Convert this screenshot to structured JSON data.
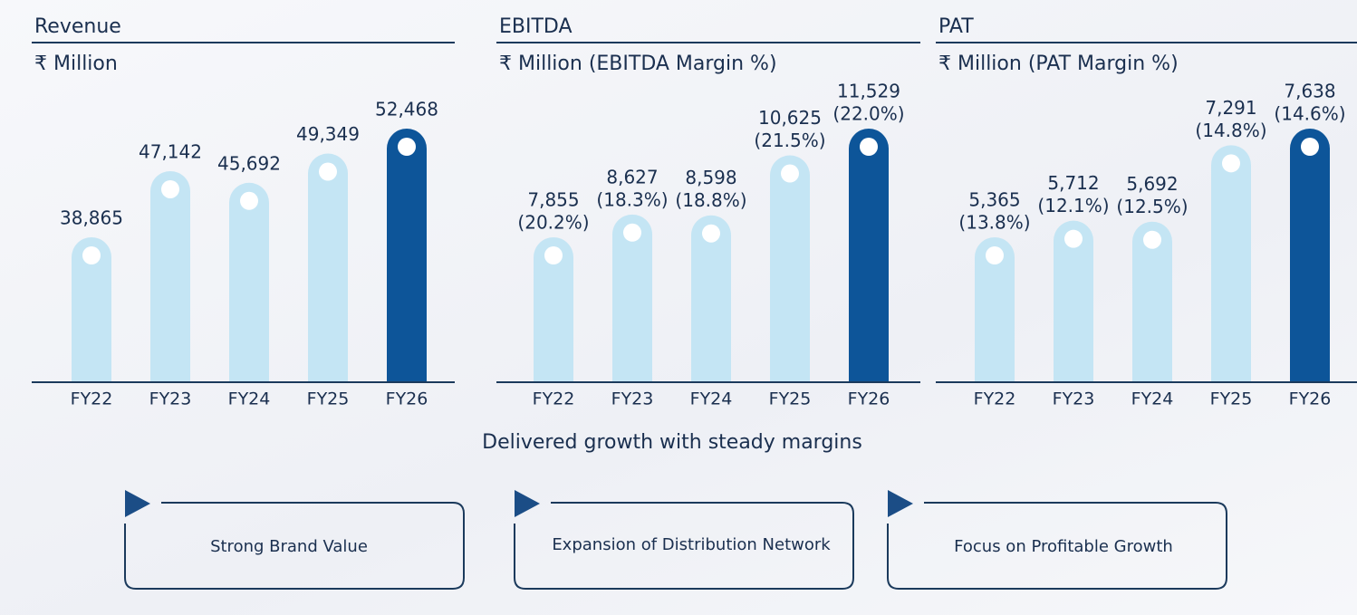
{
  "chart_data": [
    {
      "type": "bar",
      "title": "Revenue",
      "subtitle": "₹ Million",
      "categories": [
        "FY22",
        "FY23",
        "FY24",
        "FY25",
        "FY26"
      ],
      "values": [
        38865,
        47142,
        45692,
        49349,
        52468
      ],
      "value_labels": [
        "38,865",
        "47,142",
        "45,692",
        "49,349",
        "52,468"
      ],
      "colors": [
        "#c4e5f4",
        "#c4e5f4",
        "#c4e5f4",
        "#c4e5f4",
        "#0d5599"
      ]
    },
    {
      "type": "bar",
      "title": "EBITDA",
      "subtitle": "₹ Million (EBITDA Margin %)",
      "categories": [
        "FY22",
        "FY23",
        "FY24",
        "FY25",
        "FY26"
      ],
      "values": [
        7855,
        8627,
        8598,
        10625,
        11529
      ],
      "value_labels": [
        "7,855",
        "8,627",
        "8,598",
        "10,625",
        "11,529"
      ],
      "margins": [
        20.2,
        18.3,
        18.8,
        21.5,
        22.0
      ],
      "margin_labels": [
        "(20.2%)",
        "(18.3%)",
        "(18.8%)",
        "(21.5%)",
        "(22.0%)"
      ],
      "colors": [
        "#c4e5f4",
        "#c4e5f4",
        "#c4e5f4",
        "#c4e5f4",
        "#0d5599"
      ]
    },
    {
      "type": "bar",
      "title": "PAT",
      "subtitle": "₹ Million (PAT Margin %)",
      "categories": [
        "FY22",
        "FY23",
        "FY24",
        "FY25",
        "FY26"
      ],
      "values": [
        5365,
        5712,
        5692,
        7291,
        7638
      ],
      "value_labels": [
        "5,365",
        "5,712",
        "5,692",
        "7,291",
        "7,638"
      ],
      "margins": [
        13.8,
        12.1,
        12.5,
        14.8,
        14.6
      ],
      "margin_labels": [
        "(13.8%)",
        "(12.1%)",
        "(12.5%)",
        "(14.8%)",
        "(14.6%)"
      ],
      "colors": [
        "#c4e5f4",
        "#c4e5f4",
        "#c4e5f4",
        "#c4e5f4",
        "#0d5599"
      ]
    }
  ],
  "caption": "Delivered growth with steady margins",
  "highlights": [
    "Strong Brand Value",
    "Expansion of Distribution Network",
    "Focus on Profitable Growth"
  ]
}
